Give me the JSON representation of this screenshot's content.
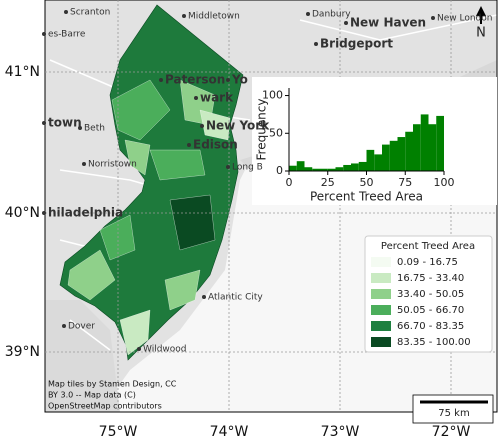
{
  "map": {
    "places": [
      "es-Barre",
      "Scranton",
      "Middletown",
      "Danbury",
      "New Haven",
      "New London",
      "Bridgeport",
      "Paterson",
      "Yo",
      "wark",
      "New York",
      "town",
      "Beth",
      "Edison",
      "Long B",
      "Norristown",
      "hiladelphia",
      "Atlantic City",
      "Dover",
      "Wildwood"
    ],
    "lat_labels": [
      "41°N",
      "40°N",
      "39°N"
    ],
    "lon_labels": [
      "75°W",
      "74°W",
      "73°W",
      "72°W"
    ],
    "attribution": [
      "Map tiles by Stamen Design, CC",
      "BY 3.0 -- Map data (C)",
      "OpenStreetMap contributors"
    ],
    "scale_bar": "75 km",
    "north": "N"
  },
  "legend": {
    "title": "Percent Treed Area",
    "items": [
      {
        "label": "0.09 -  16.75",
        "color": "#f4fbf2"
      },
      {
        "label": "16.75 -  33.40",
        "color": "#c9eac2"
      },
      {
        "label": "33.40 -  50.05",
        "color": "#8fd08a"
      },
      {
        "label": "50.05 -  66.70",
        "color": "#4bae5b"
      },
      {
        "label": "66.70 -  83.35",
        "color": "#1e8040"
      },
      {
        "label": "83.35 - 100.00",
        "color": "#0a4a22"
      }
    ]
  },
  "histogram": {
    "type": "histogram",
    "xlabel": "Percent Treed Area",
    "ylabel": "Frequency",
    "bins": [
      0,
      5,
      10,
      15,
      20,
      25,
      30,
      35,
      40,
      45,
      50,
      55,
      60,
      65,
      70,
      75,
      80,
      85,
      90,
      95,
      100
    ],
    "counts": [
      7,
      13,
      5,
      3,
      3,
      3,
      5,
      8,
      10,
      12,
      28,
      22,
      35,
      40,
      45,
      52,
      62,
      75,
      62,
      73
    ],
    "color": "#008000",
    "xlim": [
      0,
      100
    ],
    "ylim": [
      0,
      110
    ],
    "xticks": [
      0,
      25,
      50,
      75,
      100
    ],
    "yticks": [
      0,
      50,
      100
    ]
  }
}
